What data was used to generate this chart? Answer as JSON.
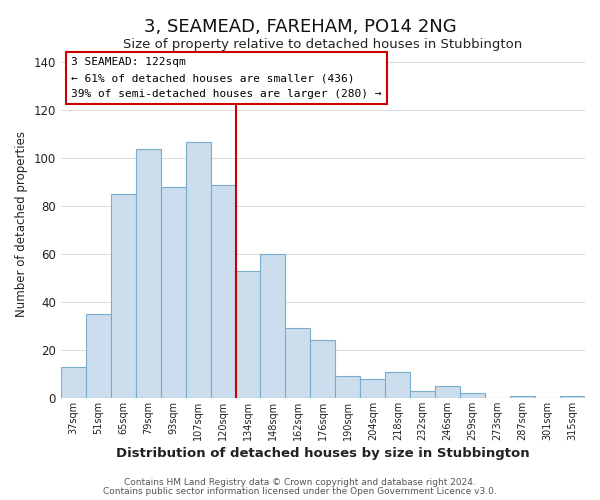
{
  "title": "3, SEAMEAD, FAREHAM, PO14 2NG",
  "subtitle": "Size of property relative to detached houses in Stubbington",
  "xlabel": "Distribution of detached houses by size in Stubbington",
  "ylabel": "Number of detached properties",
  "bar_labels": [
    "37sqm",
    "51sqm",
    "65sqm",
    "79sqm",
    "93sqm",
    "107sqm",
    "120sqm",
    "134sqm",
    "148sqm",
    "162sqm",
    "176sqm",
    "190sqm",
    "204sqm",
    "218sqm",
    "232sqm",
    "246sqm",
    "259sqm",
    "273sqm",
    "287sqm",
    "301sqm",
    "315sqm"
  ],
  "bar_heights": [
    13,
    35,
    85,
    104,
    88,
    107,
    89,
    53,
    60,
    29,
    24,
    9,
    8,
    11,
    3,
    5,
    2,
    0,
    1,
    0,
    1
  ],
  "bar_color": "#ccdded",
  "bar_edge_color": "#7aadcc",
  "vline_color": "#cc0000",
  "annotation_title": "3 SEAMEAD: 122sqm",
  "annotation_line1": "← 61% of detached houses are smaller (436)",
  "annotation_line2": "39% of semi-detached houses are larger (280) →",
  "annotation_box_color": "#ffffff",
  "annotation_box_edge": "#cc0000",
  "ylim": [
    0,
    145
  ],
  "yticks": [
    0,
    20,
    40,
    60,
    80,
    100,
    120,
    140
  ],
  "bg_color": "#ffffff",
  "grid_color": "#dddddd",
  "footer1": "Contains HM Land Registry data © Crown copyright and database right 2024.",
  "footer2": "Contains public sector information licensed under the Open Government Licence v3.0."
}
